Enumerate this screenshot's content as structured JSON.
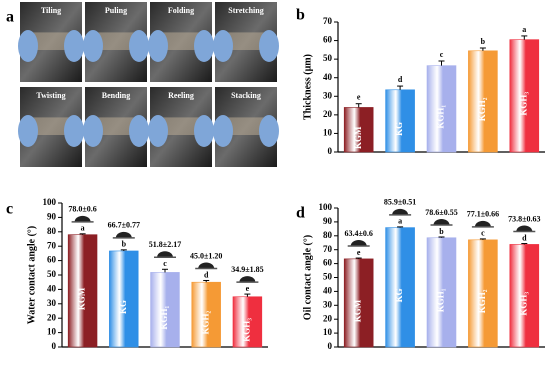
{
  "photo_panel": {
    "label": "a",
    "photos": [
      "Tiling",
      "Puling",
      "Folding",
      "Stretching",
      "Twisting",
      "Bending",
      "Reeling",
      "Stacking"
    ]
  },
  "chart_data": [
    {
      "type": "bar",
      "label": "b",
      "ylabel": "Thickness (μm)",
      "categories": [
        "KGM",
        "KG",
        "KGH₁",
        "KGH₂",
        "KGH₃"
      ],
      "values": [
        24,
        33.5,
        46.5,
        54.5,
        60.5
      ],
      "errors": [
        2,
        2,
        2.5,
        1.5,
        2
      ],
      "letters": [
        "e",
        "d",
        "c",
        "b",
        "a"
      ],
      "colors": [
        "#8c1f24",
        "#2f8fe6",
        "#a7b0ec",
        "#f59a35",
        "#ef2f3f"
      ],
      "ylim": [
        0,
        70
      ],
      "yticks": [
        0,
        10,
        20,
        30,
        40,
        50,
        60,
        70
      ]
    },
    {
      "type": "bar",
      "label": "c",
      "ylabel": "Water contact angle (°)",
      "categories": [
        "KGM",
        "KG",
        "KGH₁",
        "KGH₂",
        "KGH₃"
      ],
      "values": [
        78.0,
        66.7,
        51.8,
        45.0,
        34.9
      ],
      "errors": [
        0.6,
        0.77,
        2.17,
        1.2,
        1.85
      ],
      "value_labels": [
        "78.0±0.6",
        "66.7±0.77",
        "51.8±2.17",
        "45.0±1.20",
        "34.9±1.85"
      ],
      "letters": [
        "a",
        "b",
        "c",
        "d",
        "e"
      ],
      "colors": [
        "#8c1f24",
        "#2f8fe6",
        "#a7b0ec",
        "#f59a35",
        "#ef2f3f"
      ],
      "ylim": [
        0,
        100
      ],
      "yticks": [
        0,
        10,
        20,
        30,
        40,
        50,
        60,
        70,
        80,
        90,
        100
      ]
    },
    {
      "type": "bar",
      "label": "d",
      "ylabel": "Oil contact angle (°)",
      "categories": [
        "KGM",
        "KG",
        "KGH₁",
        "KGH₂",
        "KGH₃"
      ],
      "values": [
        63.4,
        85.9,
        78.6,
        77.1,
        73.8
      ],
      "errors": [
        0.6,
        0.51,
        0.55,
        0.66,
        0.63
      ],
      "value_labels": [
        "63.4±0.6",
        "85.9±0.51",
        "78.6±0.55",
        "77.1±0.66",
        "73.8±0.63"
      ],
      "letters": [
        "e",
        "a",
        "b",
        "c",
        "d"
      ],
      "colors": [
        "#8c1f24",
        "#2f8fe6",
        "#a7b0ec",
        "#f59a35",
        "#ef2f3f"
      ],
      "ylim": [
        0,
        100
      ],
      "yticks": [
        0,
        10,
        20,
        30,
        40,
        50,
        60,
        70,
        80,
        90,
        100
      ]
    }
  ]
}
